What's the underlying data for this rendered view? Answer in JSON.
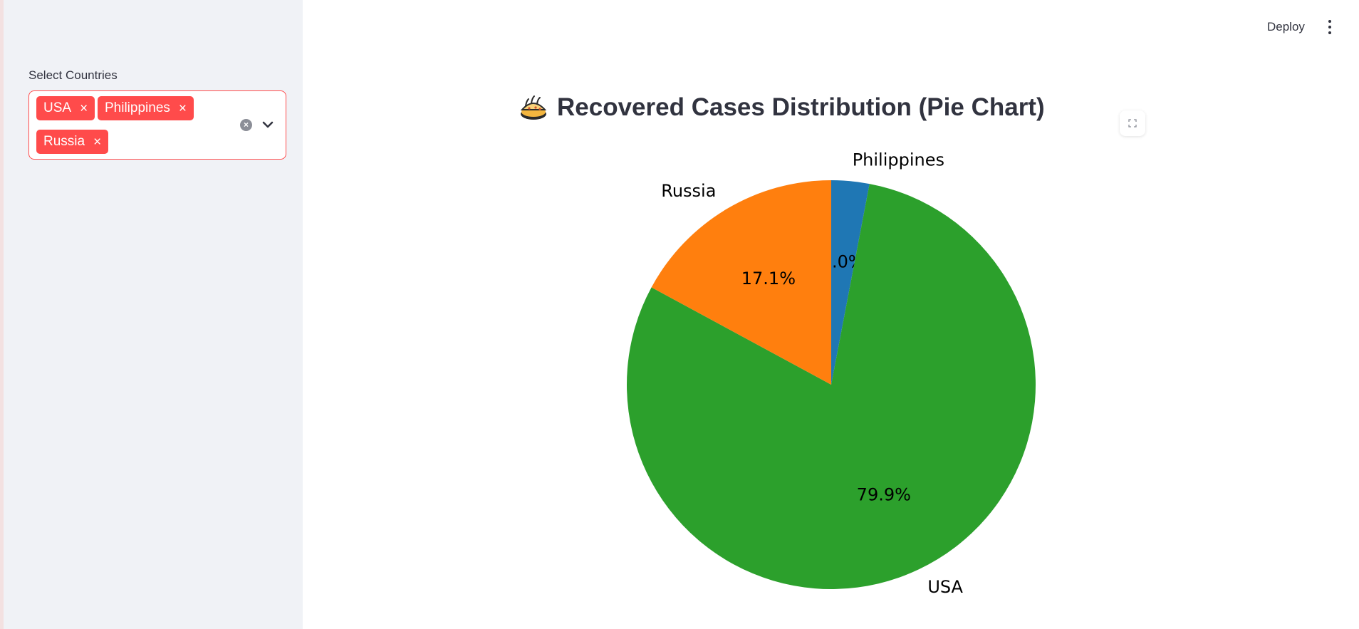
{
  "sidebar": {
    "select_label": "Select Countries",
    "selected_tags": [
      "USA",
      "Philippines",
      "Russia"
    ],
    "tag_remove_glyph": "×",
    "clear_icon": "clear-circle-icon",
    "dropdown_icon": "chevron-down-icon"
  },
  "topbar": {
    "deploy_label": "Deploy",
    "menu_icon": "more-vertical-icon"
  },
  "main": {
    "title": "Recovered Cases Distribution (Pie Chart)",
    "title_icon": "pie-emoji-icon",
    "fullscreen_icon": "fullscreen-icon"
  },
  "colors": {
    "accent": "#ff4b4b",
    "sidebar_bg": "#f0f2f6",
    "text": "#31333f"
  },
  "chart_data": {
    "type": "pie",
    "title": "",
    "start_angle_deg": 90,
    "direction": "clockwise",
    "slices": [
      {
        "label": "Philippines",
        "value": 3.0,
        "pct_label": "3.0%",
        "color": "#1f77b4"
      },
      {
        "label": "USA",
        "value": 79.9,
        "pct_label": "79.9%",
        "color": "#2ca02c"
      },
      {
        "label": "Russia",
        "value": 17.1,
        "pct_label": "17.1%",
        "color": "#ff7f0e"
      }
    ]
  }
}
